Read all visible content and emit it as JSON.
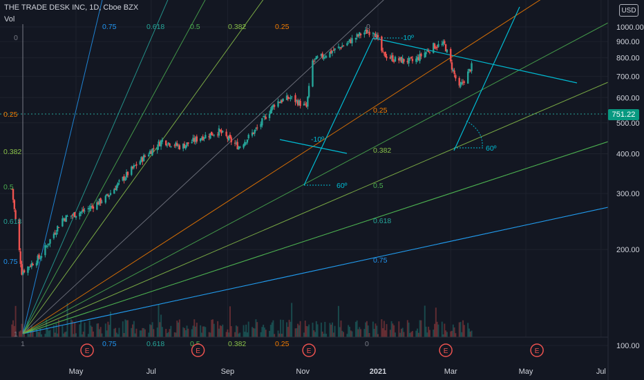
{
  "header": {
    "title": "THE TRADE DESK INC, 1D, Cboe BZX",
    "volume_label": "Vol",
    "currency": "USD",
    "current_price": "751.22"
  },
  "colors": {
    "background": "#131722",
    "up": "#26a69a",
    "down": "#ef5350",
    "fan_025": "#f57c00",
    "fan_0382": "#8bc34a",
    "fan_05": "#4caf50",
    "fan_0618": "#26a69a",
    "fan_075": "#2196f3",
    "fan_1": "#787b86",
    "trend_line": "#00bcd4"
  },
  "chart_data": {
    "type": "candlestick",
    "title": "THE TRADE DESK INC, 1D, Cboe BZX",
    "y_axis": {
      "scale": "log",
      "ticks": [
        "1000.00",
        "900.00",
        "800.00",
        "700.00",
        "600.00",
        "500.00",
        "400.00",
        "300.00",
        "200.00",
        "100.00"
      ],
      "ylim": [
        95,
        1080
      ]
    },
    "x_axis": {
      "ticks": [
        "May",
        "Jul",
        "Sep",
        "Nov",
        "2021",
        "Mar",
        "May",
        "Jul"
      ]
    },
    "earnings_markers": [
      "May",
      "Aug",
      "Nov",
      "Feb",
      "May"
    ],
    "earnings_label": "E",
    "price_path": [
      {
        "date": "2020-03-10",
        "close": 310
      },
      {
        "date": "2020-03-18",
        "close": 170
      },
      {
        "date": "2020-04-02",
        "close": 190
      },
      {
        "date": "2020-04-20",
        "close": 250
      },
      {
        "date": "2020-05-08",
        "close": 265
      },
      {
        "date": "2020-05-25",
        "close": 290
      },
      {
        "date": "2020-06-10",
        "close": 340
      },
      {
        "date": "2020-06-25",
        "close": 390
      },
      {
        "date": "2020-07-10",
        "close": 440
      },
      {
        "date": "2020-07-25",
        "close": 420
      },
      {
        "date": "2020-08-10",
        "close": 450
      },
      {
        "date": "2020-08-25",
        "close": 470
      },
      {
        "date": "2020-09-10",
        "close": 420
      },
      {
        "date": "2020-09-25",
        "close": 480
      },
      {
        "date": "2020-10-10",
        "close": 580
      },
      {
        "date": "2020-10-22",
        "close": 600
      },
      {
        "date": "2020-11-04",
        "close": 560
      },
      {
        "date": "2020-11-09",
        "close": 780
      },
      {
        "date": "2020-11-20",
        "close": 820
      },
      {
        "date": "2020-12-05",
        "close": 880
      },
      {
        "date": "2020-12-20",
        "close": 960
      },
      {
        "date": "2020-12-29",
        "close": 975
      },
      {
        "date": "2021-01-05",
        "close": 820
      },
      {
        "date": "2021-01-15",
        "close": 790
      },
      {
        "date": "2021-01-30",
        "close": 780
      },
      {
        "date": "2021-02-15",
        "close": 870
      },
      {
        "date": "2021-02-24",
        "close": 880
      },
      {
        "date": "2021-03-05",
        "close": 690
      },
      {
        "date": "2021-03-08",
        "close": 640
      },
      {
        "date": "2021-03-18",
        "close": 751.22
      }
    ],
    "overlays": {
      "gann_fan_levels": [
        "0.25",
        "0.382",
        "0.5",
        "0.618",
        "0.75"
      ],
      "fan_end_labels": [
        "0",
        "1"
      ],
      "angle_labels": [
        "-10º",
        "60º"
      ]
    }
  }
}
